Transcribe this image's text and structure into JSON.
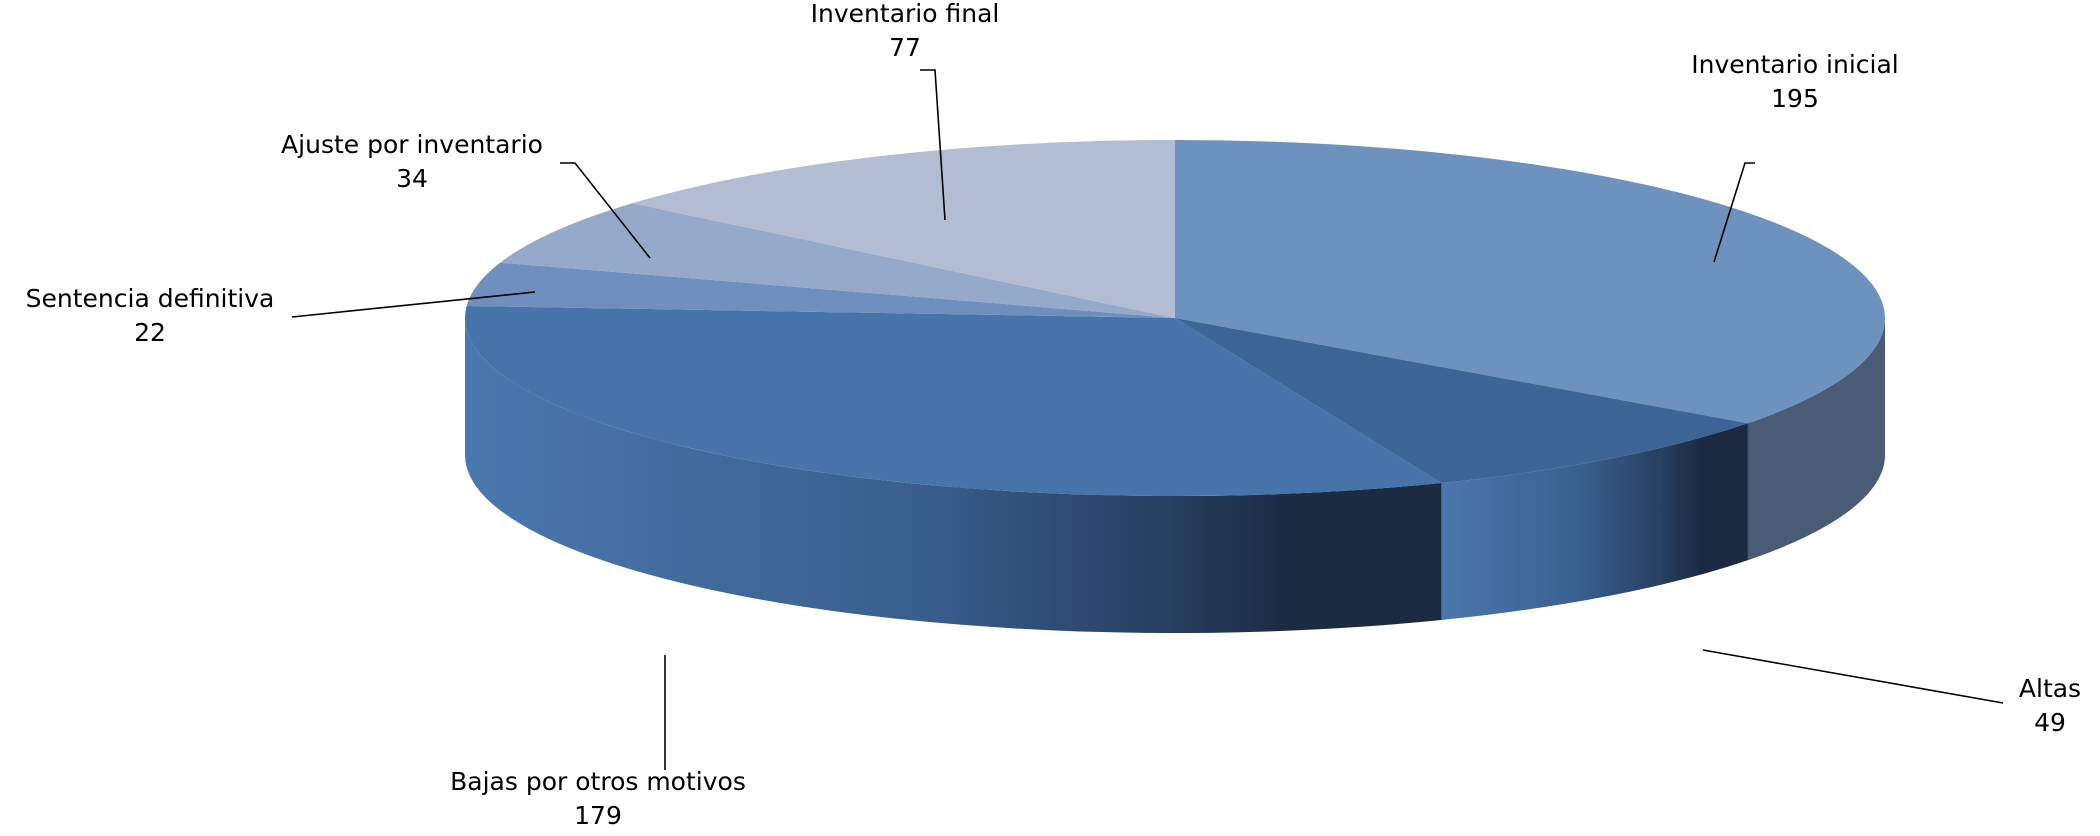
{
  "chart_data": {
    "type": "pie",
    "title": "",
    "style": "3d-exploded-none",
    "start_angle_deg": -90,
    "direction": "clockwise",
    "slices": [
      {
        "label": "Inventario inicial",
        "value": 195,
        "color": "#6d92be"
      },
      {
        "label": "Altas",
        "value": 49,
        "color": "#3c6495"
      },
      {
        "label": "Bajas por otros motivos",
        "value": 179,
        "color": "#4673a8"
      },
      {
        "label": "Sentencia definitiva",
        "value": 22,
        "color": "#6f8fbf"
      },
      {
        "label": "Ajuste por inventario",
        "value": 34,
        "color": "#95aacb"
      },
      {
        "label": "Inventario final",
        "value": 77,
        "color": "#b2bdd3"
      }
    ],
    "side_colors": {
      "dark_end": "#1c2a42",
      "light_end": "#4a78ad",
      "edge_slice": "#4a5b75"
    },
    "legend": "none",
    "data_labels": "outside with leader lines"
  }
}
